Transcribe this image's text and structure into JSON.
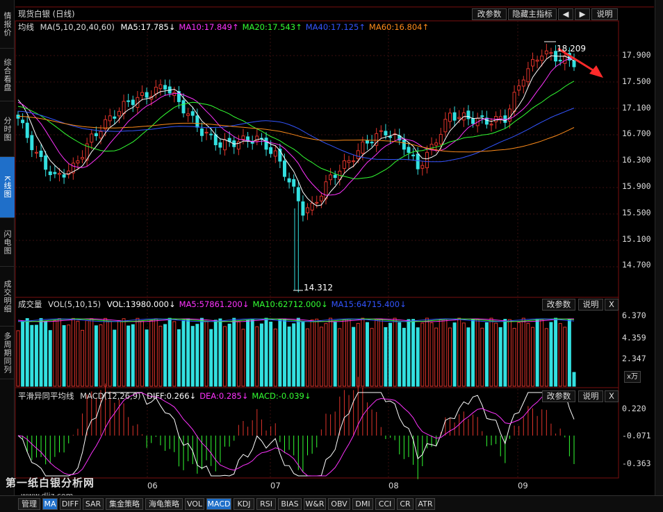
{
  "sidebar": [
    {
      "label": "情报价",
      "active": false
    },
    {
      "label": "综合看盘",
      "active": false
    },
    {
      "label": "分时图",
      "active": false
    },
    {
      "label": "K线图",
      "active": true
    },
    {
      "label": "闪电图",
      "active": false
    },
    {
      "label": "成交明细",
      "active": false
    },
    {
      "label": "多周期同列",
      "active": false
    }
  ],
  "header": {
    "title": "现货白银 (日线)",
    "buttons": {
      "params": "改参数",
      "hide": "隐藏主指标",
      "prev": "◀",
      "next": "▶",
      "help": "说明"
    }
  },
  "ma_legend": {
    "label": "均线",
    "params": "MA(5,10,20,40,60)",
    "items": [
      {
        "text": "MA5:17.785↓",
        "color": "#ffffff"
      },
      {
        "text": "MA10:17.849↑",
        "color": "#ff33ff"
      },
      {
        "text": "MA20:17.543↑",
        "color": "#33ff33"
      },
      {
        "text": "MA40:17.125↑",
        "color": "#3355ff"
      },
      {
        "text": "MA60:16.804↑",
        "color": "#ff8c1a"
      }
    ]
  },
  "price_axis": [
    "17.900",
    "17.500",
    "17.100",
    "16.700",
    "16.300",
    "15.900",
    "15.500",
    "15.100",
    "14.700"
  ],
  "annotations": {
    "high": "18.209",
    "low": "14.312"
  },
  "volume": {
    "title": "成交量",
    "params": "VOL(5,10,15)",
    "items": [
      {
        "text": "VOL:13980.000↓",
        "color": "#ffffff"
      },
      {
        "text": "MA5:57861.200↓",
        "color": "#ff33ff"
      },
      {
        "text": "MA10:62712.000↓",
        "color": "#33ff33"
      },
      {
        "text": "MA15:64715.400↓",
        "color": "#3355ff"
      }
    ],
    "axis": [
      "6.370",
      "4.359",
      "2.347"
    ],
    "unit": "x万",
    "buttons": {
      "params": "改参数",
      "help": "说明",
      "close": "X"
    }
  },
  "macd": {
    "title": "平滑异同平均线",
    "params": "MACD(12,26,9)",
    "items": [
      {
        "text": "DIFF:0.266↓",
        "color": "#ffffff"
      },
      {
        "text": "DEA:0.285↓",
        "color": "#ff33ff"
      },
      {
        "text": "MACD:-0.039↓",
        "color": "#33ff33"
      }
    ],
    "axis": [
      "0.220",
      "-0.071",
      "-0.363"
    ],
    "buttons": {
      "params": "改参数",
      "help": "说明",
      "close": "X"
    }
  },
  "x_axis": [
    "06",
    "07",
    "08",
    "09"
  ],
  "bottom_tabs": [
    {
      "label": "管理",
      "active": false
    },
    {
      "label": "MA",
      "active": true
    },
    {
      "label": "DIFF",
      "active": false
    },
    {
      "label": "SAR",
      "active": false
    },
    {
      "label": "集金策略",
      "active": false
    },
    {
      "label": "海龟策略",
      "active": false
    },
    {
      "label": "VOL",
      "active": false
    },
    {
      "label": "MACD",
      "active": true
    },
    {
      "label": "KDJ",
      "active": false
    },
    {
      "label": "RSI",
      "active": false
    },
    {
      "label": "BIAS",
      "active": false
    },
    {
      "label": "W&R",
      "active": false
    },
    {
      "label": "OBV",
      "active": false
    },
    {
      "label": "DMI",
      "active": false
    },
    {
      "label": "CCI",
      "active": false
    },
    {
      "label": "CR",
      "active": false
    },
    {
      "label": "ATR",
      "active": false
    }
  ],
  "watermark": {
    "line1": "第一纸白银分析网",
    "line2": "www.dliz.com"
  },
  "chart_data": {
    "type": "candlestick",
    "title": "现货白银 (日线)",
    "x_ticks": [
      "06",
      "07",
      "08",
      "09"
    ],
    "y_ticks": [
      17.9,
      17.5,
      17.1,
      16.7,
      16.3,
      15.9,
      15.5,
      15.1,
      14.7
    ],
    "high_label": 18.209,
    "low_label": 14.312,
    "ma_last": {
      "MA5": 17.785,
      "MA10": 17.849,
      "MA20": 17.543,
      "MA40": 17.125,
      "MA60": 16.804
    },
    "volume_last": {
      "VOL": 13980.0,
      "MA5": 57861.2,
      "MA10": 62712.0,
      "MA15": 64715.4
    },
    "macd_last": {
      "DIFF": 0.266,
      "DEA": 0.285,
      "MACD": -0.039
    },
    "colors": {
      "up": "#e0342b",
      "down": "#33e0e0",
      "grid": "#3a1010"
    }
  }
}
